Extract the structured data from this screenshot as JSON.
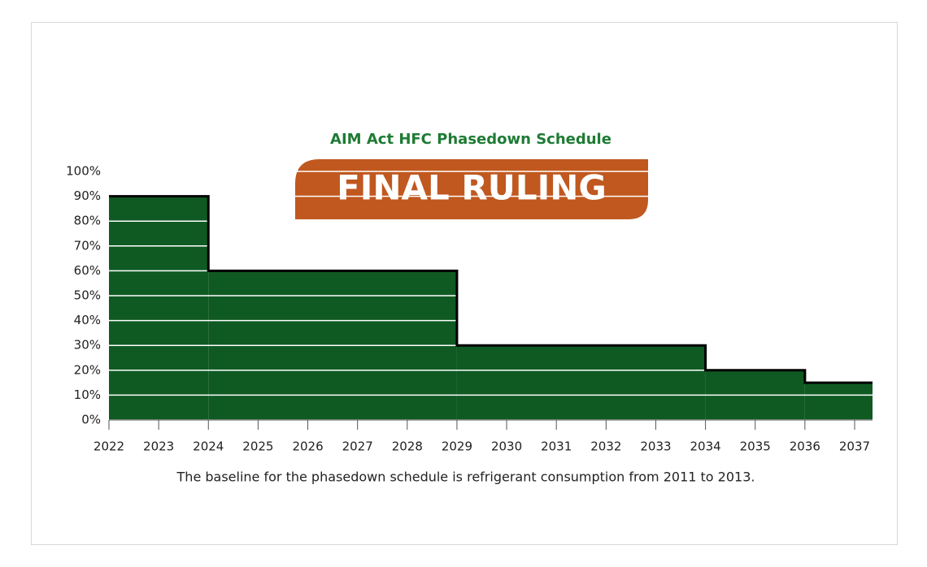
{
  "chart_data": {
    "type": "step-area",
    "title": "AIM Act HFC Phasedown Schedule",
    "badge": "FINAL RULING",
    "caption": "The baseline for the phasedown schedule is refrigerant consumption from 2011 to 2013.",
    "x": [
      2022,
      2024,
      2029,
      2034,
      2036
    ],
    "values": [
      90,
      60,
      30,
      20,
      15
    ],
    "color": "#0f5a23",
    "outline_color": "#000000",
    "grid": true,
    "grid_color": "#ffffff",
    "xlim": [
      2022,
      2037.36
    ],
    "xticks": [
      2022,
      2023,
      2024,
      2025,
      2026,
      2027,
      2028,
      2029,
      2030,
      2031,
      2032,
      2033,
      2034,
      2035,
      2036,
      2037
    ],
    "ylim": [
      0,
      100
    ],
    "yticks": [
      {
        "value": 0,
        "label": "0%"
      },
      {
        "value": 10,
        "label": "10%"
      },
      {
        "value": 20,
        "label": "20%"
      },
      {
        "value": 30,
        "label": "30%"
      },
      {
        "value": 40,
        "label": "40%"
      },
      {
        "value": 50,
        "label": "50%"
      },
      {
        "value": 60,
        "label": "60%"
      },
      {
        "value": 70,
        "label": "70%"
      },
      {
        "value": 80,
        "label": "80%"
      },
      {
        "value": 90,
        "label": "90%"
      },
      {
        "value": 100,
        "label": "100%"
      }
    ]
  }
}
